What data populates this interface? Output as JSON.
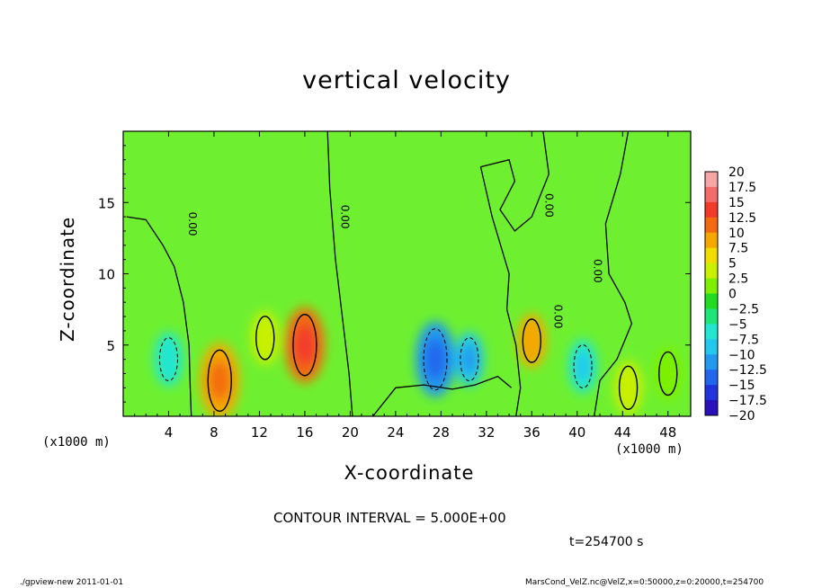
{
  "chart_data": {
    "type": "heatmap",
    "title": "vertical velocity",
    "xlabel": "X-coordinate",
    "ylabel": "Z-coordinate",
    "x_unit_label": "(x1000 m)",
    "xlim": [
      0,
      50
    ],
    "ylim": [
      0,
      20
    ],
    "x_ticks": [
      4,
      8,
      12,
      16,
      20,
      24,
      28,
      32,
      36,
      40,
      44,
      48
    ],
    "y_ticks": [
      5,
      10,
      15
    ],
    "colorbar": {
      "levels": [
        "20",
        "17.5",
        "15",
        "12.5",
        "10",
        "7.5",
        "5",
        "2.5",
        "0",
        "-2.5",
        "-5",
        "-7.5",
        "-10",
        "-12.5",
        "-15",
        "-17.5",
        "-20"
      ],
      "colors": [
        "#f7a6a6",
        "#f46b6b",
        "#f23a2a",
        "#f36a10",
        "#f5a800",
        "#f0dc00",
        "#c9f000",
        "#7cf000",
        "#22dc22",
        "#1ee57a",
        "#22e6d0",
        "#22c8ee",
        "#2299ee",
        "#2266ee",
        "#2233dd",
        "#2a10bb",
        "#6a10bb"
      ]
    },
    "contour_interval_text": "CONTOUR INTERVAL = 5.000E+00",
    "contour_labels": [
      "0.00",
      "0.00",
      "0.00",
      "0.00",
      "0.00"
    ],
    "features": [
      {
        "x": 8.5,
        "z": 2.5,
        "value": 10
      },
      {
        "x": 16,
        "z": 5,
        "value": 12
      },
      {
        "x": 12.5,
        "z": 5.5,
        "value": 5
      },
      {
        "x": 36,
        "z": 5.3,
        "value": 9
      },
      {
        "x": 27.5,
        "z": 4,
        "value": -10
      },
      {
        "x": 30.5,
        "z": 4,
        "value": -7.5
      },
      {
        "x": 40.5,
        "z": 3.5,
        "value": -6
      },
      {
        "x": 4,
        "z": 4,
        "value": -5
      },
      {
        "x": 44.5,
        "z": 2,
        "value": 4
      },
      {
        "x": 48,
        "z": 3,
        "value": 3
      }
    ]
  },
  "meta_text": {
    "time": "t=254700 s",
    "footer_left": "./gpview-new  2011-01-01",
    "footer_right": "MarsCond_VelZ.nc@VelZ,x=0:50000,z=0:20000,t=254700"
  }
}
